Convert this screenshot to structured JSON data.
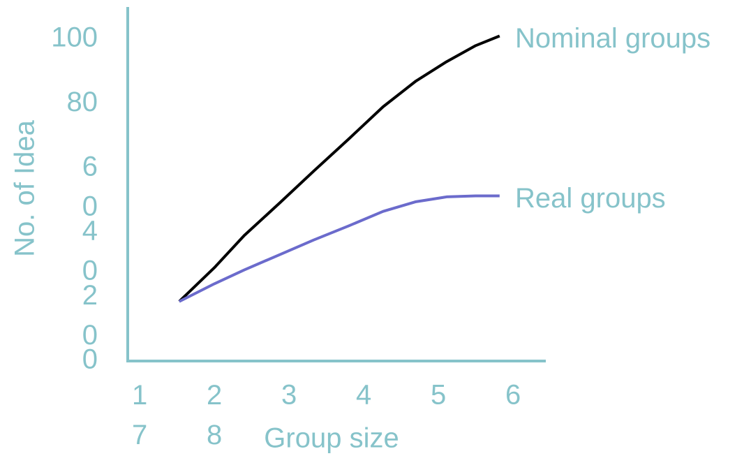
{
  "chart_data": {
    "type": "line",
    "x_label": "Group size",
    "y_label": "No. of Idea",
    "xlim": [
      0.84,
      6.42
    ],
    "ylim": [
      0,
      110
    ],
    "xticks": [
      {
        "value": 1,
        "label": "1\n7"
      },
      {
        "value": 2,
        "label": "2\n8"
      },
      3,
      4,
      5,
      6
    ],
    "yticks": [
      0,
      {
        "value": 20,
        "label": "2\n0"
      },
      {
        "value": 40,
        "label": "4\n0"
      },
      {
        "value": 60,
        "label": "6\n0"
      },
      80,
      100
    ],
    "x": [
      1.53,
      2.0,
      2.4,
      2.87,
      3.33,
      3.8,
      4.26,
      4.7,
      5.11,
      5.5,
      5.82
    ],
    "series": [
      {
        "name": "Nominal groups",
        "color": "#000000",
        "values": [
          18.5,
          29,
          39,
          49,
          59,
          69,
          79,
          87,
          93,
          98,
          101
        ]
      },
      {
        "name": "Real groups",
        "color": "#6b6bcc",
        "values": [
          18.5,
          24,
          28.3,
          33,
          37.6,
          42,
          46.5,
          49.5,
          51,
          51.3,
          51.3
        ]
      }
    ]
  }
}
